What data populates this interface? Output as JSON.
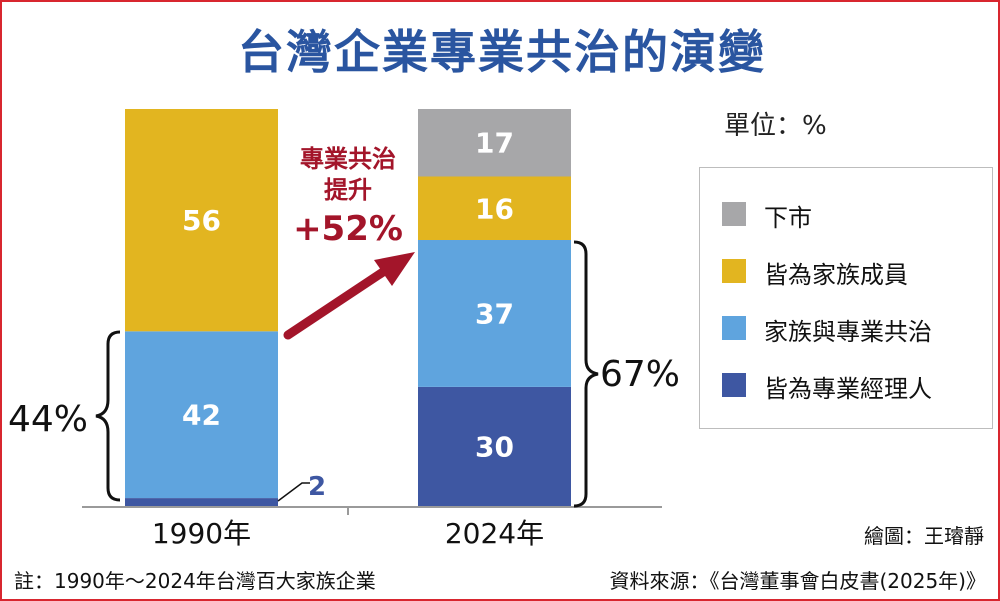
{
  "title": "台灣企業專業共治的演變",
  "unit_label": "單位：%",
  "credit": "繪圖：王璿靜",
  "footnote": "註：1990年～2024年台灣百大家族企業",
  "source": "資料來源：《台灣董事會白皮書(2025年)》",
  "annotation": {
    "line1": "專業共治",
    "line2": "提升",
    "line3": "+52%"
  },
  "bracket_left_label": "44%",
  "bracket_right_label": "67%",
  "colors": {
    "delisted": "#a7a7a9",
    "all_family": "#e2b520",
    "family_and_professional": "#5fa4de",
    "all_professional": "#3e57a2",
    "arrow": "#a3152a",
    "title": "#2a55a0"
  },
  "legend": [
    {
      "label": "下市",
      "color": "#a7a7a9"
    },
    {
      "label": "皆為家族成員",
      "color": "#e2b520"
    },
    {
      "label": "家族與專業共治",
      "color": "#5fa4de"
    },
    {
      "label": "皆為專業經理人",
      "color": "#3e57a2"
    }
  ],
  "chart_data": {
    "type": "bar",
    "stacked": true,
    "categories": [
      "1990年",
      "2024年"
    ],
    "series": [
      {
        "name": "皆為專業經理人",
        "values": [
          2,
          30
        ]
      },
      {
        "name": "家族與專業共治",
        "values": [
          42,
          37
        ]
      },
      {
        "name": "皆為家族成員",
        "values": [
          56,
          16
        ]
      },
      {
        "name": "下市",
        "values": [
          0,
          17
        ]
      }
    ],
    "ylim": [
      0,
      100
    ],
    "grid": false,
    "legend_position": "right"
  }
}
